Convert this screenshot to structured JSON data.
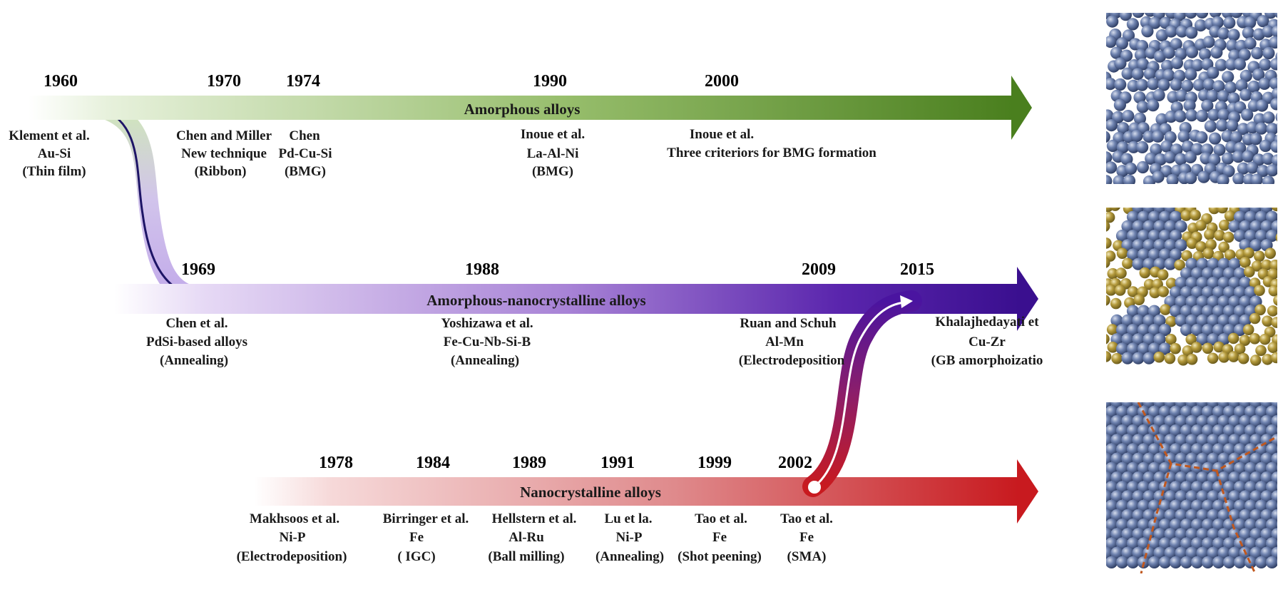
{
  "colors": {
    "amorphous": "#4a7f1e",
    "amorphous_light": "#e9f2e0",
    "amorphous_nano": "#3a0f8f",
    "amorphous_nano_light": "#efe6f8",
    "nano": "#c81a1f",
    "nano_light": "#fbe9e9",
    "navy_arrow": "#1d1466",
    "atom_blue": "#4a6090",
    "atom_gold": "#a88f2e",
    "gb_line": "#c0581f"
  },
  "tracks": {
    "amorphous": {
      "label": "Amorphous alloys",
      "years": [
        "1960",
        "1970",
        "1974",
        "1990",
        "2000"
      ],
      "events": [
        {
          "lines": [
            "Klement et al.",
            "Au-Si",
            "(Thin film)"
          ]
        },
        {
          "lines": [
            "Chen and Miller",
            "New technique",
            "(Ribbon)"
          ]
        },
        {
          "lines": [
            "Chen",
            "Pd-Cu-Si",
            "(BMG)"
          ]
        },
        {
          "lines": [
            "Inoue et al.",
            "La-Al-Ni",
            "(BMG)"
          ]
        },
        {
          "lines": [
            "Inoue et al.",
            "Three criteriors for BMG formation"
          ]
        }
      ]
    },
    "amorphous_nano": {
      "label": "Amorphous-nanocrystalline alloys",
      "years": [
        "1969",
        "1988",
        "2009",
        "2015"
      ],
      "events": [
        {
          "lines": [
            "Chen et al.",
            "PdSi-based  alloys",
            "(Annealing)"
          ]
        },
        {
          "lines": [
            "Yoshizawa et al.",
            "Fe-Cu-Nb-Si-B",
            "(Annealing)"
          ]
        },
        {
          "lines": [
            "Ruan and Schuh",
            "Al-Mn",
            "(Electrodeposition"
          ]
        },
        {
          "lines": [
            "Khalajhedayati et",
            "Cu-Zr",
            "(GB amorphoizatio"
          ]
        }
      ]
    },
    "nano": {
      "label": "Nanocrystalline alloys",
      "years": [
        "1978",
        "1984",
        "1989",
        "1991",
        "1999",
        "2002"
      ],
      "events": [
        {
          "lines": [
            "Makhsoos et al.",
            "Ni-P",
            "(Electrodeposition)"
          ]
        },
        {
          "lines": [
            "Birringer et al.",
            "Fe",
            "( IGC)"
          ]
        },
        {
          "lines": [
            "Hellstern et al.",
            "Al-Ru",
            "(Ball milling)"
          ]
        },
        {
          "lines": [
            "Lu et la.",
            "Ni-P",
            "(Annealing)"
          ]
        },
        {
          "lines": [
            "Tao et al.",
            "Fe",
            "(Shot peening)"
          ]
        },
        {
          "lines": [
            "Tao et al.",
            "Fe",
            "(SMA)"
          ]
        }
      ]
    }
  },
  "panels": [
    {
      "structure": "amorphous",
      "atom_colors": [
        "blue"
      ]
    },
    {
      "structure": "amorphous-nanocrystalline",
      "atom_colors": [
        "blue",
        "gold"
      ]
    },
    {
      "structure": "nanocrystalline",
      "atom_colors": [
        "blue"
      ],
      "grain_boundaries": "dashed"
    }
  ]
}
